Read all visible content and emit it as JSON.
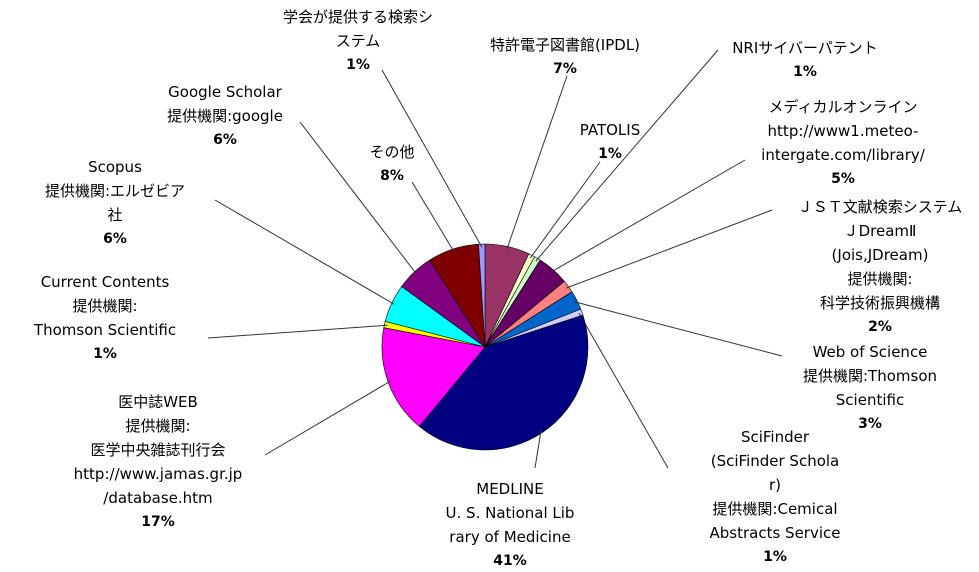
{
  "chart_data": {
    "type": "pie",
    "categories": [
      "特許電子図書館(IPDL)",
      "PATOLIS",
      "NRIサイバーパテント",
      "メディカルオンライン\nhttp://www1.meteo-\nintergate.com/library/",
      "ＪＳＴ文献検索システム\nＪDreamⅡ\n(Jois,JDream)\n提供機関:\n科学技術振興機構",
      "Web of Science\n提供機関:Thomson\nScientific",
      "SciFinder\n(SciFinder Schola\nr)\n提供機関:Cemical\nAbstracts Service",
      "MEDLINE\nU. S. National Lib\nrary of Medicine",
      "医中誌WEB\n提供機関:\n医学中央雑誌刊行会\nhttp://www.jamas.gr.jp\n/database.htm",
      "Current Contents\n提供機関:\nThomson Scientific",
      "Scopus\n提供機関:エルゼビア\n社",
      "Google Scholar\n提供機関:google",
      "その他",
      "学会が提供する検索シ\nステム"
    ],
    "values": [
      7,
      1,
      1,
      5,
      2,
      3,
      1,
      41,
      17,
      1,
      6,
      6,
      8,
      1
    ],
    "value_labels": [
      "7%",
      "1%",
      "1%",
      "5%",
      "2%",
      "3%",
      "1%",
      "41%",
      "17%",
      "1%",
      "6%",
      "6%",
      "8%",
      "1%"
    ],
    "colors": [
      "#993366",
      "#ffffcc",
      "#ccffcc",
      "#660066",
      "#ff8080",
      "#0066cc",
      "#ccccff",
      "#000080",
      "#ff00ff",
      "#ffff00",
      "#00ffff",
      "#800080",
      "#800000",
      "#9999ff"
    ]
  }
}
